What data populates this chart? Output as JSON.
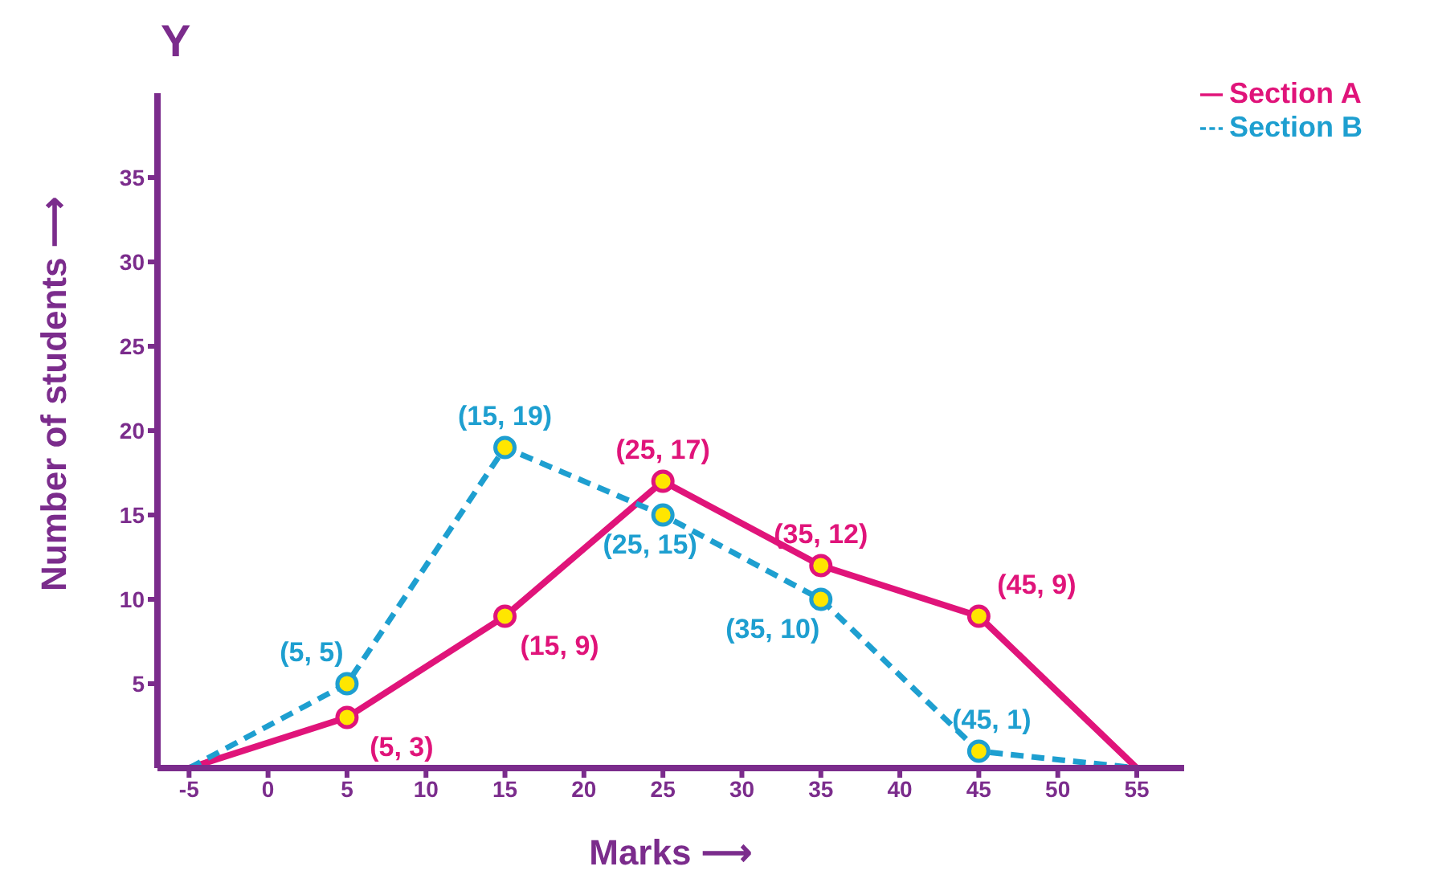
{
  "chart_data": {
    "type": "line",
    "xlabel": "Marks ⟶",
    "ylabel": "Number of students ⟶",
    "annotations": [
      "Y"
    ],
    "xlim": [
      -7,
      58
    ],
    "xticks": [
      -5,
      0,
      5,
      10,
      15,
      20,
      25,
      30,
      35,
      40,
      45,
      50,
      55
    ],
    "ylim": [
      0,
      40
    ],
    "yticks": [
      5,
      10,
      15,
      20,
      25,
      30,
      35
    ],
    "grid": false,
    "legend": "top right",
    "marker": "circle",
    "series": [
      {
        "name": "Section A",
        "color": "#e0147a",
        "line_style": "solid",
        "x": [
          -5,
          5,
          15,
          25,
          35,
          45,
          55
        ],
        "values": [
          0,
          3,
          9,
          17,
          12,
          9,
          0
        ],
        "value_labels": [
          null,
          "(5, 3)",
          "(15, 9)",
          "(25, 17)",
          "(35, 12)",
          "(45, 9)",
          null
        ]
      },
      {
        "name": "Section B",
        "color": "#1e9fd0",
        "line_style": "dashed",
        "x": [
          -5,
          5,
          15,
          25,
          35,
          45,
          55
        ],
        "values": [
          0,
          5,
          19,
          15,
          10,
          1,
          0
        ],
        "value_labels": [
          null,
          "(5, 5)",
          "(15, 19)",
          "(25, 15)",
          "(35, 10)",
          "(45, 1)",
          null
        ]
      }
    ]
  }
}
